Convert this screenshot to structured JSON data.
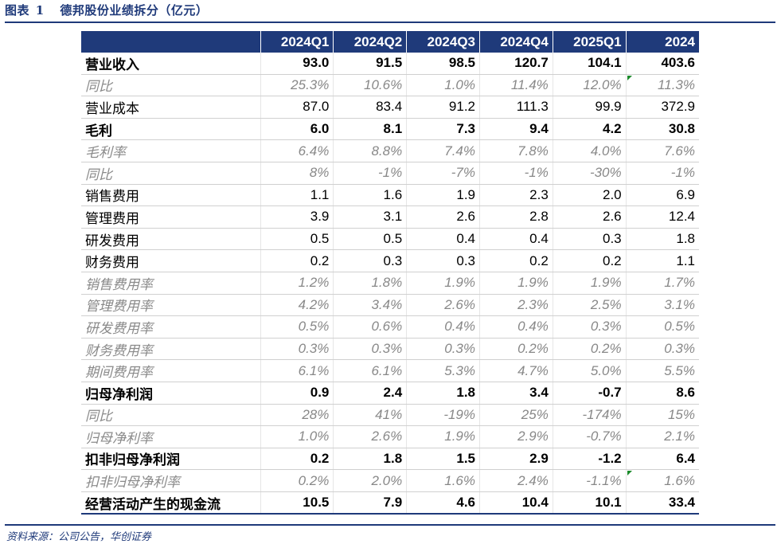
{
  "title": {
    "prefix": "图表",
    "number": "1",
    "text": "德邦股份业绩拆分（亿元）"
  },
  "columns": [
    "",
    "2024Q1",
    "2024Q2",
    "2024Q3",
    "2024Q4",
    "2025Q1",
    "2024"
  ],
  "rows": [
    {
      "label": "营业收入",
      "style": "bold",
      "values": [
        "93.0",
        "91.5",
        "98.5",
        "120.7",
        "104.1",
        "403.6"
      ]
    },
    {
      "label": "同比",
      "style": "italic",
      "values": [
        "25.3%",
        "10.6%",
        "1.0%",
        "11.4%",
        "12.0%",
        "11.3%"
      ],
      "marker_col": 5
    },
    {
      "label": "营业成本",
      "style": "normal",
      "values": [
        "87.0",
        "83.4",
        "91.2",
        "111.3",
        "99.9",
        "372.9"
      ]
    },
    {
      "label": "毛利",
      "style": "bold",
      "values": [
        "6.0",
        "8.1",
        "7.3",
        "9.4",
        "4.2",
        "30.8"
      ]
    },
    {
      "label": "毛利率",
      "style": "italic",
      "values": [
        "6.4%",
        "8.8%",
        "7.4%",
        "7.8%",
        "4.0%",
        "7.6%"
      ]
    },
    {
      "label": "同比",
      "style": "italic",
      "values": [
        "8%",
        "-1%",
        "-7%",
        "-1%",
        "-30%",
        "-1%"
      ]
    },
    {
      "label": "销售费用",
      "style": "normal",
      "values": [
        "1.1",
        "1.6",
        "1.9",
        "2.3",
        "2.0",
        "6.9"
      ]
    },
    {
      "label": "管理费用",
      "style": "normal",
      "values": [
        "3.9",
        "3.1",
        "2.6",
        "2.8",
        "2.6",
        "12.4"
      ]
    },
    {
      "label": "研发费用",
      "style": "normal",
      "values": [
        "0.5",
        "0.5",
        "0.4",
        "0.4",
        "0.3",
        "1.8"
      ]
    },
    {
      "label": "财务费用",
      "style": "normal",
      "values": [
        "0.2",
        "0.3",
        "0.3",
        "0.2",
        "0.2",
        "1.1"
      ]
    },
    {
      "label": "销售费用率",
      "style": "italic",
      "values": [
        "1.2%",
        "1.8%",
        "1.9%",
        "1.9%",
        "1.9%",
        "1.7%"
      ]
    },
    {
      "label": "管理费用率",
      "style": "italic",
      "values": [
        "4.2%",
        "3.4%",
        "2.6%",
        "2.3%",
        "2.5%",
        "3.1%"
      ]
    },
    {
      "label": "研发费用率",
      "style": "italic",
      "values": [
        "0.5%",
        "0.6%",
        "0.4%",
        "0.4%",
        "0.3%",
        "0.5%"
      ]
    },
    {
      "label": "财务费用率",
      "style": "italic",
      "values": [
        "0.3%",
        "0.3%",
        "0.3%",
        "0.2%",
        "0.2%",
        "0.3%"
      ]
    },
    {
      "label": "期间费用率",
      "style": "italic",
      "values": [
        "6.1%",
        "6.1%",
        "5.3%",
        "4.7%",
        "5.0%",
        "5.5%"
      ]
    },
    {
      "label": "归母净利润",
      "style": "bold",
      "values": [
        "0.9",
        "2.4",
        "1.8",
        "3.4",
        "-0.7",
        "8.6"
      ]
    },
    {
      "label": "同比",
      "style": "italic",
      "values": [
        "28%",
        "41%",
        "-19%",
        "25%",
        "-174%",
        "15%"
      ]
    },
    {
      "label": "归母净利率",
      "style": "italic",
      "values": [
        "1.0%",
        "2.6%",
        "1.9%",
        "2.9%",
        "-0.7%",
        "2.1%"
      ]
    },
    {
      "label": "扣非归母净利润",
      "style": "bold",
      "values": [
        "0.2",
        "1.8",
        "1.5",
        "2.9",
        "-1.2",
        "6.4"
      ]
    },
    {
      "label": "扣非归母净利率",
      "style": "italic",
      "values": [
        "0.2%",
        "2.0%",
        "1.6%",
        "2.4%",
        "-1.1%",
        "1.6%"
      ],
      "marker_col": 5
    },
    {
      "label": "经营活动产生的现金流",
      "style": "bold",
      "values": [
        "10.5",
        "7.9",
        "4.6",
        "10.4",
        "10.1",
        "33.4"
      ]
    }
  ],
  "source": "资料来源：公司公告，华创证券",
  "colors": {
    "accent": "#1f3a7a",
    "muted": "#888888",
    "marker": "#1a8a2a"
  }
}
